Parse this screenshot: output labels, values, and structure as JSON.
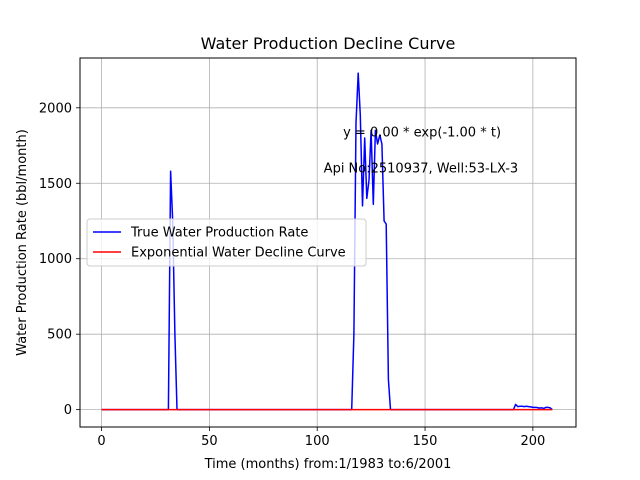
{
  "chart_data": {
    "type": "line",
    "title": "Water Production Decline Curve",
    "xlabel": "Time (months) from:1/1983 to:6/2001",
    "ylabel": "Water Production Rate (bbl/month)",
    "xlim": [
      -10,
      220
    ],
    "ylim": [
      -115,
      2330
    ],
    "xticks": [
      0,
      50,
      100,
      150,
      200
    ],
    "yticks": [
      0,
      500,
      1000,
      1500,
      2000
    ],
    "grid": true,
    "legend_position": "center-left",
    "annotations": [
      {
        "text": "y = 0.00 * exp(-1.00 * t)",
        "x": 112,
        "y": 1810
      },
      {
        "text": "Api No:2510937, Well:53-LX-3",
        "x": 103,
        "y": 1570
      }
    ],
    "series": [
      {
        "name": "True Water Production Rate",
        "color": "#0000ff",
        "x": [
          0,
          31,
          32,
          33,
          34,
          35,
          116,
          117,
          118,
          119,
          120,
          121,
          122,
          123,
          124,
          125,
          126,
          127,
          128,
          129,
          130,
          131,
          132,
          133,
          134,
          135,
          136,
          191,
          192,
          193,
          194,
          195,
          196,
          197,
          198,
          199,
          200,
          201,
          202,
          203,
          204,
          205,
          206,
          207,
          208,
          209
        ],
        "y": [
          0,
          0,
          1580,
          1250,
          500,
          0,
          0,
          500,
          1900,
          2230,
          1950,
          1350,
          1800,
          1400,
          1520,
          1850,
          1360,
          1850,
          1760,
          1820,
          1760,
          1250,
          1230,
          200,
          0,
          0,
          0,
          0,
          35,
          20,
          22,
          22,
          20,
          22,
          20,
          18,
          15,
          15,
          14,
          10,
          12,
          8,
          15,
          15,
          12,
          0
        ]
      },
      {
        "name": "Exponential Water Decline Curve",
        "color": "#ff0000",
        "x": [
          0,
          209
        ],
        "y": [
          0,
          0
        ]
      }
    ]
  }
}
